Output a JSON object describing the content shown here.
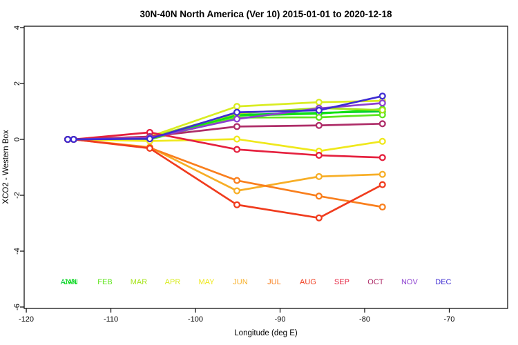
{
  "title": "30N-40N North America (Ver 10)   2015-01-01 to 2020-12-18",
  "axes": {
    "xlabel": "Longitude (deg E)",
    "ylabel": "XCO2 - Western Box",
    "x_ticks": [
      -120,
      -110,
      -100,
      -90,
      -80,
      -70
    ],
    "y_ticks": [
      -6,
      -4,
      -2,
      0,
      2,
      4
    ],
    "x_range": [
      -120.25,
      -63.1
    ],
    "y_range": [
      -6.05,
      4.05
    ]
  },
  "chart_data": {
    "type": "line",
    "title": "30N-40N North America (Ver 10)   2015-01-01 to 2020-12-18",
    "xlabel": "Longitude (deg E)",
    "ylabel": "XCO2 - Western Box",
    "xlim": [
      -120.25,
      -63.1
    ],
    "ylim": [
      -6.05,
      4.05
    ],
    "grid": false,
    "marker": "open-circle",
    "x": [
      -115.1,
      -114.4,
      -105.4,
      -95.1,
      -85.4,
      -77.9
    ],
    "series": [
      {
        "name": "ANN",
        "color": "#00C936",
        "label_lon": -115.0,
        "values": [
          0,
          0,
          0.03,
          0.88,
          0.95,
          1.0
        ]
      },
      {
        "name": "JAN",
        "color": "#12E212",
        "label_lon": -114.75,
        "values": [
          0,
          0,
          0.05,
          0.85,
          0.92,
          1.08
        ]
      },
      {
        "name": "FEB",
        "color": "#5FE51C",
        "label_lon": -110.7,
        "values": [
          0,
          0,
          0.0,
          0.78,
          0.79,
          0.88
        ]
      },
      {
        "name": "MAR",
        "color": "#A6E41A",
        "label_lon": -106.7,
        "values": [
          0,
          0,
          0.08,
          0.93,
          1.12,
          1.05
        ]
      },
      {
        "name": "APR",
        "color": "#D9EC22",
        "label_lon": -102.7,
        "values": [
          0,
          0,
          0.1,
          1.18,
          1.33,
          1.38
        ]
      },
      {
        "name": "MAY",
        "color": "#EFE81C",
        "label_lon": -98.7,
        "values": [
          0,
          0,
          -0.06,
          0.01,
          -0.42,
          -0.07
        ]
      },
      {
        "name": "JUN",
        "color": "#F7AE26",
        "label_lon": -94.7,
        "values": [
          0,
          0,
          -0.28,
          -1.84,
          -1.33,
          -1.25
        ]
      },
      {
        "name": "JUL",
        "color": "#F97F1D",
        "label_lon": -90.7,
        "values": [
          0,
          0,
          -0.3,
          -1.47,
          -2.03,
          -2.42
        ]
      },
      {
        "name": "AUG",
        "color": "#F03C1E",
        "label_lon": -86.7,
        "values": [
          0,
          0,
          -0.32,
          -2.34,
          -2.81,
          -1.62
        ]
      },
      {
        "name": "SEP",
        "color": "#E5203E",
        "label_lon": -82.7,
        "values": [
          0,
          0,
          0.25,
          -0.36,
          -0.57,
          -0.65
        ]
      },
      {
        "name": "OCT",
        "color": "#AE2D68",
        "label_lon": -78.7,
        "values": [
          0,
          0,
          0.1,
          0.46,
          0.5,
          0.56
        ]
      },
      {
        "name": "NOV",
        "color": "#8C3FD0",
        "label_lon": -74.7,
        "values": [
          0,
          0,
          0.05,
          0.73,
          1.11,
          1.3
        ]
      },
      {
        "name": "DEC",
        "color": "#3E2CD2",
        "label_lon": -70.7,
        "values": [
          0,
          0,
          0.02,
          0.97,
          1.04,
          1.55
        ]
      }
    ],
    "month_label_value_y": -5.19
  },
  "colors": {
    "axis": "#000000",
    "background": "#ffffff",
    "marker_fill": "#ffffff"
  }
}
